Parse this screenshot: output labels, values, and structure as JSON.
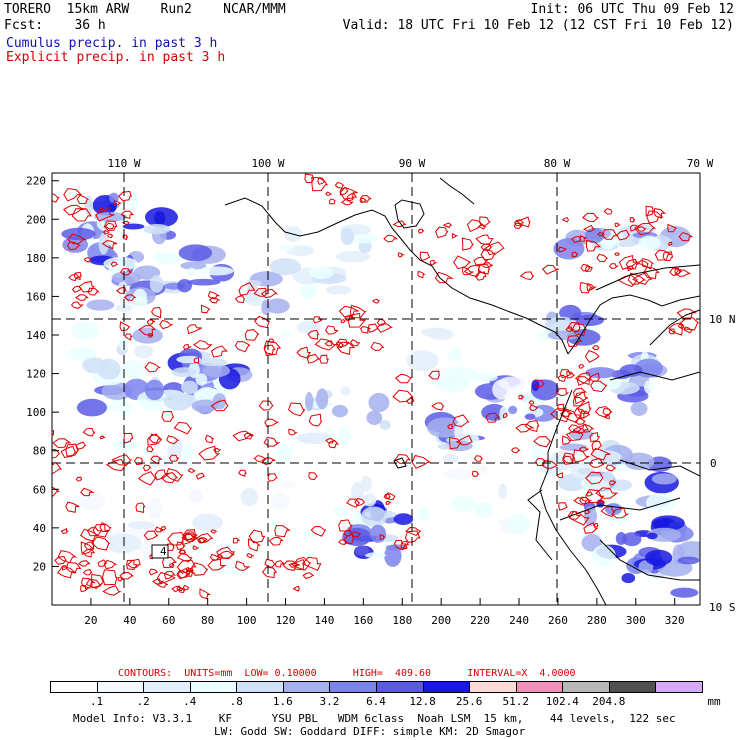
{
  "header": {
    "model": "TORERO  15km ARW    Run2    NCAR/MMM",
    "fcst": "Fcst:    36 h",
    "init": "Init: 06 UTC Thu 09 Feb 12",
    "valid": "Valid: 18 UTC Fri 10 Feb 12 (12 CST Fri 10 Feb 12)",
    "field1": "Cumulus precip. in past 3 h",
    "field2": "Explicit precip. in past 3 h"
  },
  "colors": {
    "field1": "#1010b0",
    "field2": "#d40000",
    "contour": "#e00000",
    "coast": "#000000"
  },
  "map": {
    "lon_labels": [
      "110 W",
      "100 W",
      "90 W",
      "80 W",
      "70 W"
    ],
    "lat_labels": [
      "10 N",
      "0",
      "10 S"
    ],
    "grid_x_labels": [
      "20",
      "40",
      "60",
      "80",
      "100",
      "120",
      "140",
      "160",
      "180",
      "200",
      "220",
      "240",
      "260",
      "280",
      "300",
      "320"
    ],
    "grid_y_labels": [
      "20",
      "40",
      "60",
      "80",
      "100",
      "120",
      "140",
      "160",
      "180",
      "200",
      "220"
    ],
    "box_label": "4"
  },
  "chart_data": {
    "type": "heatmap",
    "title": "Cumulus precip. in past 3 h / Explicit precip. in past 3 h",
    "xlim": [
      0,
      333
    ],
    "ylim": [
      0,
      224
    ],
    "contours": {
      "label": "CONTOURS:  UNITS=mm  LOW= 0.10000      HIGH=  409.60      INTERVAL=X  4.0000",
      "units": "mm",
      "low": 0.1,
      "high": 409.6,
      "interval": "X 4.0000"
    },
    "colorbar": {
      "levels": [
        ".1",
        ".2",
        ".4",
        ".8",
        "1.6",
        "3.2",
        "6.4",
        "12.8",
        "25.6",
        "51.2",
        "102.4",
        "204.8"
      ],
      "unit": "mm",
      "colors": [
        "#ffffff",
        "#f4f8ff",
        "#e2eefc",
        "#eaffff",
        "#cfe2f7",
        "#a6b0ee",
        "#7c84ec",
        "#5a5ae6",
        "#1818e0",
        "#ffd8d8",
        "#f090b8",
        "#b8b8b8",
        "#505050",
        "#d8a8f8"
      ]
    }
  },
  "footer": {
    "line1": "Model Info: V3.3.1    KF      YSU PBL   WDM 6class  Noah LSM  15 km,    44 levels,  122 sec",
    "line2": "LW: Godd SW: Goddard DIFF: simple KM: 2D Smagor"
  }
}
